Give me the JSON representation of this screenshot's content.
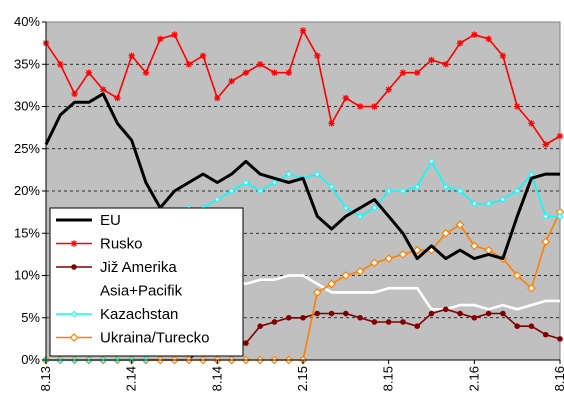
{
  "chart_data": {
    "type": "line",
    "title": "",
    "xlabel": "",
    "ylabel": "",
    "ylim": [
      0,
      40
    ],
    "yunit": "%",
    "yticks": [
      0,
      5,
      10,
      15,
      20,
      25,
      30,
      35,
      40
    ],
    "ytick_labels": [
      "0%",
      "5%",
      "10%",
      "15%",
      "20%",
      "25%",
      "30%",
      "35%",
      "40%"
    ],
    "xlim": [
      "8.13",
      "8.16"
    ],
    "xticks": [
      "8.13",
      "2.14",
      "8.14",
      "2.15",
      "8.15",
      "2.16",
      "8.16"
    ],
    "grid": "horizontal dashed",
    "plot_background": "#c0c0c0",
    "legend_position": "bottom-left",
    "series": [
      {
        "name": "EU",
        "color": "#000000",
        "marker": "none",
        "points": [
          [
            "8.13",
            25.5
          ],
          [
            "9.13",
            29
          ],
          [
            "10.13",
            30.5
          ],
          [
            "11.13",
            30.5
          ],
          [
            "12.13",
            31.5
          ],
          [
            "1.14",
            28
          ],
          [
            "2.14",
            26
          ],
          [
            "3.14",
            21
          ],
          [
            "4.14",
            18
          ],
          [
            "5.14",
            20
          ],
          [
            "6.14",
            21
          ],
          [
            "7.14",
            22
          ],
          [
            "8.14",
            21
          ],
          [
            "9.14",
            22
          ],
          [
            "10.14",
            23.5
          ],
          [
            "11.14",
            22
          ],
          [
            "12.14",
            21.5
          ],
          [
            "1.15",
            21
          ],
          [
            "2.15",
            21.5
          ],
          [
            "3.15",
            17
          ],
          [
            "4.15",
            15.5
          ],
          [
            "5.15",
            17
          ],
          [
            "6.15",
            18
          ],
          [
            "7.15",
            19
          ],
          [
            "8.15",
            17
          ],
          [
            "9.15",
            15
          ],
          [
            "10.15",
            12
          ],
          [
            "11.15",
            13.5
          ],
          [
            "12.15",
            12
          ],
          [
            "1.16",
            13
          ],
          [
            "2.16",
            12
          ],
          [
            "3.16",
            12.5
          ],
          [
            "4.16",
            12
          ],
          [
            "5.16",
            17
          ],
          [
            "6.16",
            21.5
          ],
          [
            "7.16",
            22
          ],
          [
            "8.16",
            22
          ]
        ]
      },
      {
        "name": "Rusko",
        "color": "#ff0000",
        "marker": "star",
        "points": [
          [
            "8.13",
            37.5
          ],
          [
            "9.13",
            35
          ],
          [
            "10.13",
            31.5
          ],
          [
            "11.13",
            34
          ],
          [
            "12.13",
            32
          ],
          [
            "1.14",
            31
          ],
          [
            "2.14",
            36
          ],
          [
            "3.14",
            34
          ],
          [
            "4.14",
            38
          ],
          [
            "5.14",
            38.5
          ],
          [
            "6.14",
            35
          ],
          [
            "7.14",
            36
          ],
          [
            "8.14",
            31
          ],
          [
            "9.14",
            33
          ],
          [
            "10.14",
            34
          ],
          [
            "11.14",
            35
          ],
          [
            "12.14",
            34
          ],
          [
            "1.15",
            34
          ],
          [
            "2.15",
            39
          ],
          [
            "3.15",
            36
          ],
          [
            "4.15",
            28
          ],
          [
            "5.15",
            31
          ],
          [
            "6.15",
            30
          ],
          [
            "7.15",
            30
          ],
          [
            "8.15",
            32
          ],
          [
            "9.15",
            34
          ],
          [
            "10.15",
            34
          ],
          [
            "11.15",
            35.5
          ],
          [
            "12.15",
            35
          ],
          [
            "1.16",
            37.5
          ],
          [
            "2.16",
            38.5
          ],
          [
            "3.16",
            38
          ],
          [
            "4.16",
            36
          ],
          [
            "5.16",
            30
          ],
          [
            "6.16",
            28
          ],
          [
            "7.16",
            25.5
          ],
          [
            "8.16",
            26.5
          ]
        ]
      },
      {
        "name": "Již Amerika",
        "color": "#800000",
        "marker": "circle",
        "points": [
          [
            "8.13",
            0
          ],
          [
            "9.13",
            0
          ],
          [
            "10.13",
            0
          ],
          [
            "11.13",
            0
          ],
          [
            "12.13",
            0
          ],
          [
            "1.14",
            0
          ],
          [
            "2.14",
            0
          ],
          [
            "3.14",
            0
          ],
          [
            "4.14",
            0
          ],
          [
            "5.14",
            0
          ],
          [
            "6.14",
            0
          ],
          [
            "7.14",
            1.5
          ],
          [
            "8.14",
            2
          ],
          [
            "9.14",
            2
          ],
          [
            "10.14",
            2
          ],
          [
            "11.14",
            4
          ],
          [
            "12.14",
            4.5
          ],
          [
            "1.15",
            5
          ],
          [
            "2.15",
            5
          ],
          [
            "3.15",
            5.5
          ],
          [
            "4.15",
            5.5
          ],
          [
            "5.15",
            5.5
          ],
          [
            "6.15",
            5
          ],
          [
            "7.15",
            4.5
          ],
          [
            "8.15",
            4.5
          ],
          [
            "9.15",
            4.5
          ],
          [
            "10.15",
            4
          ],
          [
            "11.15",
            5.5
          ],
          [
            "12.15",
            6
          ],
          [
            "1.16",
            5.5
          ],
          [
            "2.16",
            5
          ],
          [
            "3.16",
            5.5
          ],
          [
            "4.16",
            5.5
          ],
          [
            "5.16",
            4
          ],
          [
            "6.16",
            4
          ],
          [
            "7.16",
            3
          ],
          [
            "8.16",
            2.5
          ]
        ]
      },
      {
        "name": "Asia+Pacifik",
        "color": "#ffffff",
        "marker": "none",
        "points": [
          [
            "8.13",
            0
          ],
          [
            "9.13",
            0
          ],
          [
            "10.13",
            0
          ],
          [
            "11.13",
            0
          ],
          [
            "12.13",
            0
          ],
          [
            "1.14",
            0
          ],
          [
            "2.14",
            7
          ],
          [
            "3.14",
            7.5
          ],
          [
            "4.14",
            8
          ],
          [
            "5.14",
            8.5
          ],
          [
            "6.14",
            9
          ],
          [
            "7.14",
            9.5
          ],
          [
            "8.14",
            9.5
          ],
          [
            "9.14",
            9.5
          ],
          [
            "10.14",
            9
          ],
          [
            "11.14",
            9.5
          ],
          [
            "12.14",
            9.5
          ],
          [
            "1.15",
            10
          ],
          [
            "2.15",
            10
          ],
          [
            "3.15",
            9
          ],
          [
            "4.15",
            8
          ],
          [
            "5.15",
            8
          ],
          [
            "6.15",
            8
          ],
          [
            "7.15",
            8
          ],
          [
            "8.15",
            8.5
          ],
          [
            "9.15",
            8.5
          ],
          [
            "10.15",
            8.5
          ],
          [
            "11.15",
            6
          ],
          [
            "12.15",
            6
          ],
          [
            "1.16",
            6.5
          ],
          [
            "2.16",
            6.5
          ],
          [
            "3.16",
            6
          ],
          [
            "4.16",
            6.5
          ],
          [
            "5.16",
            6
          ],
          [
            "6.16",
            6.5
          ],
          [
            "7.16",
            7
          ],
          [
            "8.16",
            7
          ]
        ]
      },
      {
        "name": "Kazachstan",
        "color": "#00ffff",
        "marker": "diamond-small",
        "points": [
          [
            "8.13",
            0
          ],
          [
            "9.13",
            0
          ],
          [
            "10.13",
            0
          ],
          [
            "11.13",
            0
          ],
          [
            "12.13",
            0
          ],
          [
            "1.14",
            0
          ],
          [
            "2.14",
            0
          ],
          [
            "3.14",
            0
          ],
          [
            "4.14",
            17.5
          ],
          [
            "5.14",
            17.5
          ],
          [
            "6.14",
            18
          ],
          [
            "7.14",
            18
          ],
          [
            "8.14",
            19
          ],
          [
            "9.14",
            20
          ],
          [
            "10.14",
            21
          ],
          [
            "11.14",
            20
          ],
          [
            "12.14",
            21
          ],
          [
            "1.15",
            22
          ],
          [
            "2.15",
            21.5
          ],
          [
            "3.15",
            22
          ],
          [
            "4.15",
            20.5
          ],
          [
            "5.15",
            18
          ],
          [
            "6.15",
            17
          ],
          [
            "7.15",
            18
          ],
          [
            "8.15",
            20
          ],
          [
            "9.15",
            20
          ],
          [
            "10.15",
            20.5
          ],
          [
            "11.15",
            23.5
          ],
          [
            "12.15",
            20.5
          ],
          [
            "1.16",
            20
          ],
          [
            "2.16",
            18.5
          ],
          [
            "3.16",
            18.5
          ],
          [
            "4.16",
            19
          ],
          [
            "5.16",
            20
          ],
          [
            "6.16",
            22
          ],
          [
            "7.16",
            17
          ],
          [
            "8.16",
            17
          ]
        ]
      },
      {
        "name": "Ukraina/Turecko",
        "color": "#ff8000",
        "marker": "diamond",
        "points": [
          [
            "8.13",
            0
          ],
          [
            "9.13",
            0
          ],
          [
            "10.13",
            0
          ],
          [
            "11.13",
            0
          ],
          [
            "12.13",
            0
          ],
          [
            "1.14",
            0
          ],
          [
            "2.14",
            0
          ],
          [
            "3.14",
            0
          ],
          [
            "4.14",
            0
          ],
          [
            "5.14",
            0
          ],
          [
            "6.14",
            0
          ],
          [
            "7.14",
            0
          ],
          [
            "8.14",
            0
          ],
          [
            "9.14",
            0
          ],
          [
            "10.14",
            0
          ],
          [
            "11.14",
            0
          ],
          [
            "12.14",
            0
          ],
          [
            "1.15",
            0
          ],
          [
            "2.15",
            0
          ],
          [
            "3.15",
            8
          ],
          [
            "4.15",
            9
          ],
          [
            "5.15",
            10
          ],
          [
            "6.15",
            10.5
          ],
          [
            "7.15",
            11.5
          ],
          [
            "8.15",
            12
          ],
          [
            "9.15",
            12.5
          ],
          [
            "10.15",
            13
          ],
          [
            "11.15",
            13
          ],
          [
            "12.15",
            15
          ],
          [
            "1.16",
            16
          ],
          [
            "2.16",
            13.5
          ],
          [
            "3.16",
            13
          ],
          [
            "4.16",
            12
          ],
          [
            "5.16",
            10
          ],
          [
            "6.16",
            8.5
          ],
          [
            "7.16",
            14
          ],
          [
            "8.16",
            17.5
          ]
        ]
      }
    ]
  }
}
